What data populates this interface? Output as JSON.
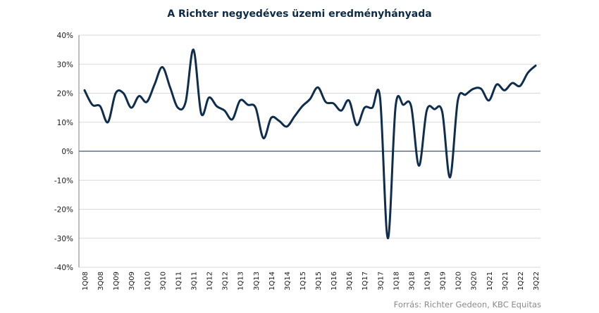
{
  "chart_data": {
    "type": "line",
    "title": "A Richter negyedéves üzemi eredményhányada",
    "xlabel": "",
    "ylabel": "",
    "ylim": [
      -40,
      40
    ],
    "y_ticks": [
      40,
      30,
      20,
      10,
      0,
      -10,
      -20,
      -30,
      -40
    ],
    "y_tick_labels": [
      "40%",
      "30%",
      "20%",
      "10%",
      "0%",
      "-10%",
      "-20%",
      "-30%",
      "-40%"
    ],
    "grid": true,
    "legend": "none",
    "line_color": "#0f2d4c",
    "x_tick_labels": [
      "1Q08",
      "3Q08",
      "1Q09",
      "3Q09",
      "1Q10",
      "3Q10",
      "1Q11",
      "3Q11",
      "1Q12",
      "3Q12",
      "1Q13",
      "3Q13",
      "1Q14",
      "3Q14",
      "1Q15",
      "3Q15",
      "1Q16",
      "3Q16",
      "1Q17",
      "3Q17",
      "1Q18",
      "3Q18",
      "1Q19",
      "3Q19",
      "1Q20",
      "3Q20",
      "1Q21",
      "3Q21",
      "1Q22",
      "3Q22"
    ],
    "x": [
      "1Q08",
      "2Q08",
      "3Q08",
      "4Q08",
      "1Q09",
      "2Q09",
      "3Q09",
      "4Q09",
      "1Q10",
      "2Q10",
      "3Q10",
      "4Q10",
      "1Q11",
      "2Q11",
      "3Q11",
      "4Q11",
      "1Q12",
      "2Q12",
      "3Q12",
      "4Q12",
      "1Q13",
      "2Q13",
      "3Q13",
      "4Q13",
      "1Q14",
      "2Q14",
      "3Q14",
      "4Q14",
      "1Q15",
      "2Q15",
      "3Q15",
      "4Q15",
      "1Q16",
      "2Q16",
      "3Q16",
      "4Q16",
      "1Q17",
      "2Q17",
      "3Q17",
      "4Q17",
      "1Q18",
      "2Q18",
      "3Q18",
      "4Q18",
      "1Q19",
      "2Q19",
      "3Q19",
      "4Q19",
      "1Q20",
      "2Q20",
      "3Q20",
      "4Q20",
      "1Q21",
      "2Q21",
      "3Q21",
      "4Q21",
      "1Q22",
      "2Q22",
      "3Q22"
    ],
    "series": [
      {
        "values": [
          21,
          16,
          15.5,
          10,
          20,
          20,
          15,
          19,
          17,
          23,
          29,
          22,
          15,
          17,
          35,
          13,
          18.5,
          15.5,
          14,
          11,
          17.5,
          16,
          15,
          4.5,
          11.5,
          10.5,
          8.5,
          12,
          15.5,
          18,
          22,
          17,
          16.5,
          14,
          17.5,
          9,
          15,
          15,
          18.5,
          -30,
          15.5,
          16,
          15.5,
          -5,
          14,
          14.5,
          13.5,
          -9,
          17.5,
          19.5,
          21.5,
          21.5,
          17.5,
          23,
          21,
          23.5,
          22.5,
          27,
          29.5
        ]
      }
    ]
  },
  "source_note": "Forrás: Richter Gedeon, KBC Equitas"
}
